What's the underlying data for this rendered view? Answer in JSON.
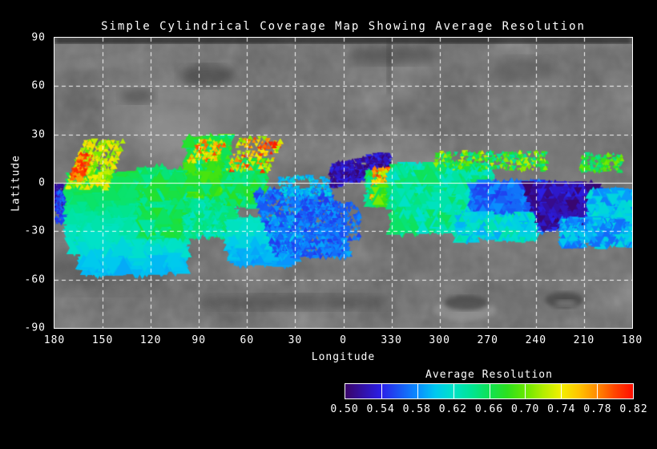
{
  "title": "Simple Cylindrical Coverage Map Showing Average Resolution",
  "axes": {
    "xlabel": "Longitude",
    "ylabel": "Latitude",
    "x_tick_labels": [
      "180",
      "150",
      "120",
      "90",
      "60",
      "30",
      "0",
      "330",
      "300",
      "270",
      "240",
      "210",
      "180"
    ],
    "y_tick_labels": [
      "90",
      "60",
      "30",
      "0",
      "-30",
      "-60",
      "-90"
    ]
  },
  "colorbar": {
    "title": "Average Resolution",
    "tick_labels": [
      "0.50",
      "0.54",
      "0.58",
      "0.62",
      "0.66",
      "0.70",
      "0.74",
      "0.78",
      "0.82"
    ],
    "min": 0.5,
    "max": 0.82,
    "segments": 8
  },
  "chart_data": {
    "type": "scatter",
    "title": "Simple Cylindrical Coverage Map Showing Average Resolution",
    "xlabel": "Longitude",
    "ylabel": "Latitude",
    "x_ticks": [
      180,
      150,
      120,
      90,
      60,
      30,
      0,
      330,
      300,
      270,
      240,
      210,
      180
    ],
    "y_ticks": [
      90,
      60,
      30,
      0,
      -30,
      -60,
      -90
    ],
    "ylim": [
      -90,
      90
    ],
    "grid": "dashed-white, solid line at equator",
    "basemap": "grayscale planetary mosaic",
    "value_label": "Average Resolution",
    "value_range": [
      0.5,
      0.82
    ],
    "colorbar_stops": [
      [
        0.5,
        "#3a0468"
      ],
      [
        0.54,
        "#2a1fe8"
      ],
      [
        0.58,
        "#0a8cff"
      ],
      [
        0.6,
        "#00c8f0"
      ],
      [
        0.62,
        "#00e2c8"
      ],
      [
        0.64,
        "#00e495"
      ],
      [
        0.66,
        "#10e255"
      ],
      [
        0.68,
        "#2ce01e"
      ],
      [
        0.7,
        "#66e800"
      ],
      [
        0.72,
        "#b2ee00"
      ],
      [
        0.74,
        "#f2f000"
      ],
      [
        0.76,
        "#ffc400"
      ],
      [
        0.78,
        "#ff8a00"
      ],
      [
        0.8,
        "#ff4400"
      ],
      [
        0.82,
        "#ff0e00"
      ]
    ],
    "clusters": [
      {
        "name": "purple-specks-left",
        "d": [
          0,
          8
        ],
        "lat": [
          -17,
          -1
        ],
        "v": [
          0.5,
          0.53
        ],
        "n": 160,
        "s": 2.2
      },
      {
        "name": "blue-specks-left",
        "d": [
          1,
          14
        ],
        "lat": [
          -25,
          -5
        ],
        "v": [
          0.54,
          0.575
        ],
        "n": 220,
        "s": 2.4
      },
      {
        "name": "left-main-green-field",
        "d": [
          11,
          63
        ],
        "lat": [
          -40,
          3
        ],
        "v": [
          0.615,
          0.665
        ],
        "n": 1000,
        "s": 11,
        "grad": "lat"
      },
      {
        "name": "bottom-teal-band",
        "d": [
          18,
          80
        ],
        "lat": [
          -53,
          -27
        ],
        "v": [
          0.595,
          0.635
        ],
        "n": 750,
        "s": 11,
        "grad": "lat"
      },
      {
        "name": "yellow-streaks-left",
        "d": [
          13,
          39
        ],
        "lat": [
          -3,
          26
        ],
        "v": [
          0.695,
          0.755
        ],
        "n": 240,
        "s": 3.6,
        "k": 9,
        "shx": 11
      },
      {
        "name": "red-streaks-left",
        "d": [
          12,
          21
        ],
        "lat": [
          1,
          18
        ],
        "v": [
          0.765,
          0.82
        ],
        "n": 80,
        "s": 3,
        "k": 5,
        "shx": 8
      },
      {
        "name": "midleft-green-field",
        "d": [
          55,
          86
        ],
        "lat": [
          -31,
          6
        ],
        "v": [
          0.635,
          0.675
        ],
        "n": 550,
        "s": 10
      },
      {
        "name": "green-scatter-mid",
        "d": [
          82,
          112
        ],
        "lat": [
          -33,
          -6
        ],
        "v": [
          0.62,
          0.66
        ],
        "n": 320,
        "s": 6
      },
      {
        "name": "green-high-cluster",
        "d": [
          84,
          108
        ],
        "lat": [
          -7,
          27
        ],
        "v": [
          0.64,
          0.7
        ],
        "n": 420,
        "s": 8
      },
      {
        "name": "orange-tips",
        "d": [
          87,
          105
        ],
        "lat": [
          13,
          27
        ],
        "v": [
          0.72,
          0.8
        ],
        "n": 70,
        "s": 3,
        "k": 7,
        "shx": 8
      },
      {
        "name": "green-mid2",
        "d": [
          107,
          129
        ],
        "lat": [
          -13,
          12
        ],
        "v": [
          0.64,
          0.68
        ],
        "n": 350,
        "s": 8
      },
      {
        "name": "hot-scatter-mid",
        "d": [
          111,
          139
        ],
        "lat": [
          7,
          28
        ],
        "v": [
          0.7,
          0.82
        ],
        "n": 130,
        "s": 3,
        "k": 10,
        "shx": 9
      },
      {
        "name": "cyan-bottom-mid",
        "d": [
          111,
          149
        ],
        "lat": [
          -48,
          -25
        ],
        "v": [
          0.585,
          0.625
        ],
        "n": 550,
        "s": 10,
        "grad": "lat"
      },
      {
        "name": "blue-fan",
        "d": [
          131,
          179
        ],
        "lat": [
          -46,
          -4
        ],
        "v": [
          0.548,
          0.592
        ],
        "n": 800,
        "s": 4,
        "k": 16,
        "shx": -14
      },
      {
        "name": "blue-sparse-mid",
        "d": [
          155,
          190
        ],
        "lat": [
          -35,
          -12
        ],
        "v": [
          0.55,
          0.585
        ],
        "n": 260,
        "s": 3
      },
      {
        "name": "cyan-specks-mid",
        "d": [
          140,
          172
        ],
        "lat": [
          -8,
          4
        ],
        "v": [
          0.58,
          0.62
        ],
        "n": 140,
        "s": 2.6
      },
      {
        "name": "purple-band",
        "d": [
          172,
          209
        ],
        "lat": [
          1,
          15
        ],
        "v": [
          0.5,
          0.548
        ],
        "n": 450,
        "s": 3.2,
        "shy": 0.22
      },
      {
        "name": "hot-cluster-base",
        "d": [
          195,
          217
        ],
        "lat": [
          -13,
          7
        ],
        "v": [
          0.62,
          0.68
        ],
        "n": 300,
        "s": 5
      },
      {
        "name": "hot-cluster-spikes",
        "d": [
          198,
          212
        ],
        "lat": [
          -11,
          9
        ],
        "v": [
          0.72,
          0.82
        ],
        "n": 160,
        "s": 3,
        "k": 8,
        "shx": 2
      },
      {
        "name": "yellowgreen-band",
        "d": [
          199,
          263
        ],
        "lat": [
          -13,
          -3
        ],
        "v": [
          0.655,
          0.71
        ],
        "n": 500,
        "s": 6
      },
      {
        "name": "right-green-field",
        "d": [
          211,
          270
        ],
        "lat": [
          -29,
          9
        ],
        "v": [
          0.615,
          0.66
        ],
        "n": 800,
        "s": 9
      },
      {
        "name": "top-specks-right",
        "d": [
          237,
          307
        ],
        "lat": [
          8,
          19
        ],
        "v": [
          0.63,
          0.73
        ],
        "n": 280,
        "s": 3
      },
      {
        "name": "right-blue-field",
        "d": [
          261,
          309
        ],
        "lat": [
          -28,
          -1
        ],
        "v": [
          0.548,
          0.585
        ],
        "n": 850,
        "s": 7
      },
      {
        "name": "teal-below-blue",
        "d": [
          252,
          300
        ],
        "lat": [
          -35,
          -20
        ],
        "v": [
          0.59,
          0.635
        ],
        "n": 300,
        "s": 6
      },
      {
        "name": "purple-right-field",
        "d": [
          299,
          345
        ],
        "lat": [
          -27,
          -2
        ],
        "v": [
          0.5,
          0.545
        ],
        "n": 700,
        "s": 7,
        "k": 14,
        "shx": -10
      },
      {
        "name": "right-edge-teal",
        "d": [
          334,
          360
        ],
        "lat": [
          -32,
          -6
        ],
        "v": [
          0.575,
          0.62
        ],
        "n": 350,
        "s": 7
      },
      {
        "name": "cyan-bottom-right",
        "d": [
          316,
          360
        ],
        "lat": [
          -39,
          -23
        ],
        "v": [
          0.565,
          0.615
        ],
        "n": 420,
        "s": 5
      },
      {
        "name": "green-specks-far-right",
        "d": [
          328,
          354
        ],
        "lat": [
          7,
          18
        ],
        "v": [
          0.64,
          0.71
        ],
        "n": 130,
        "s": 3
      }
    ]
  }
}
